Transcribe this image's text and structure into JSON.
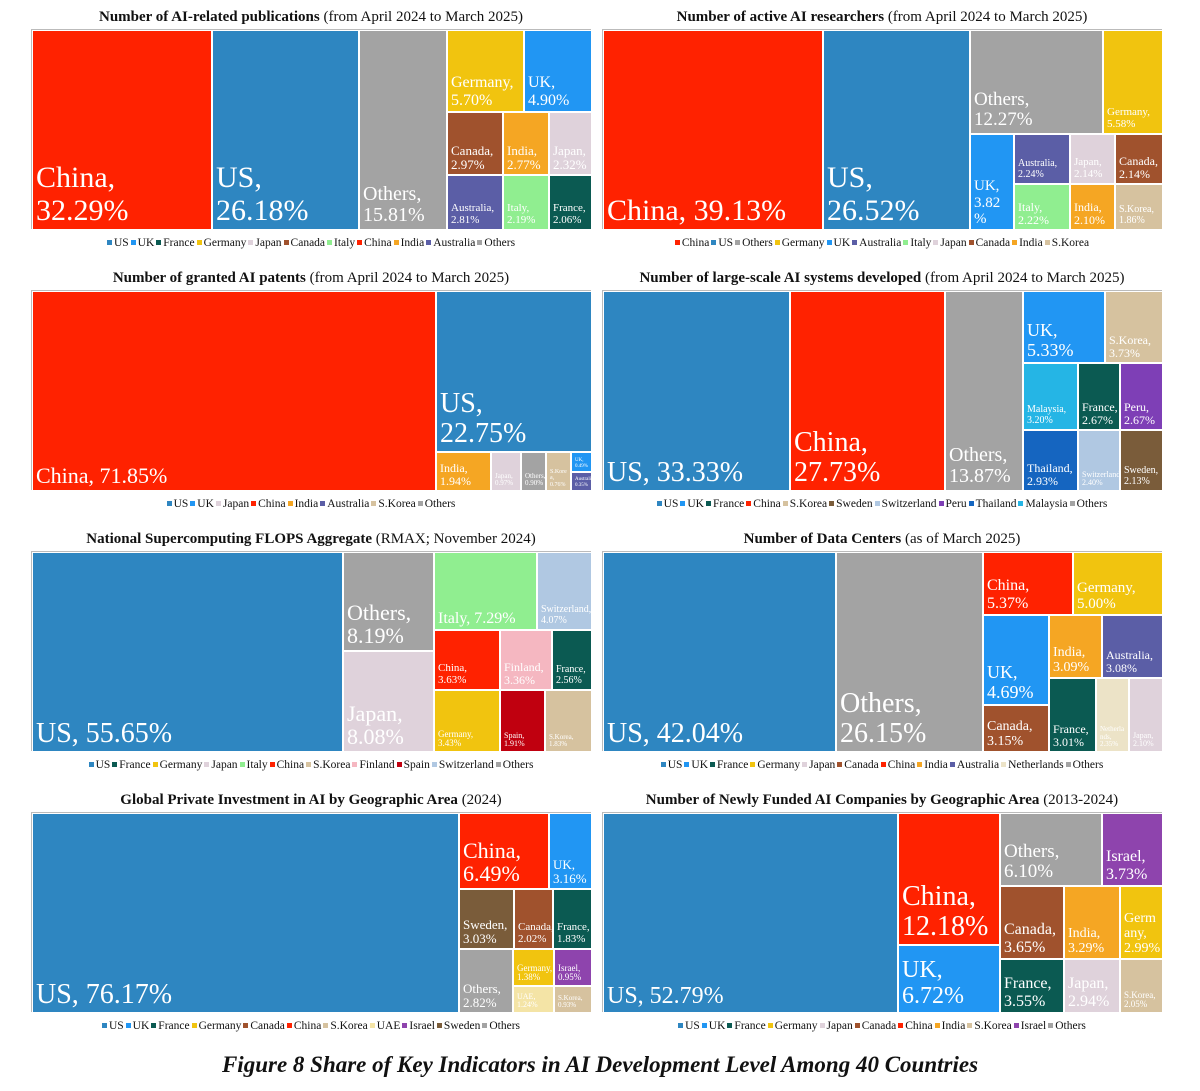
{
  "colors": {
    "US": "#2e86c1",
    "China": "#ff2200",
    "Others": "#a3a3a3",
    "Germany": "#f1c40f",
    "UK": "#2196f3",
    "Canada": "#a0522d",
    "India": "#f5a623",
    "Japan": "#dfd2db",
    "Australia": "#5b5ea6",
    "Italy": "#90ee90",
    "France": "#0b5a52",
    "S.Korea": "#d6c29f",
    "Malaysia": "#25b5e5",
    "Peru": "#7e3fb6",
    "Thailand": "#1565c0",
    "Switzerland": "#b0c8e2",
    "Sweden": "#7a5c3a",
    "Finland": "#f5b7c1",
    "Spain": "#c0000f",
    "Netherlands": "#ece3c7",
    "UAE": "#f4e4a6",
    "Israel": "#8e44ad"
  },
  "caption": "Figure 8 Share of Key Indicators in AI Development Level Among 40 Countries",
  "chart_data": [
    {
      "type": "treemap",
      "title": "Number of AI-related publications",
      "subtitle": "(from April 2024 to March 2025)",
      "legend": [
        "US",
        "UK",
        "France",
        "Germany",
        "Japan",
        "Canada",
        "Italy",
        "China",
        "India",
        "Australia",
        "Others"
      ],
      "items": [
        {
          "name": "China",
          "label": "China,\n32.29%",
          "value": 32.29
        },
        {
          "name": "US",
          "label": "US,\n26.18%",
          "value": 26.18
        },
        {
          "name": "Others",
          "label": "Others,\n15.81%",
          "value": 15.81
        },
        {
          "name": "Germany",
          "label": "Germany,\n5.70%",
          "value": 5.7
        },
        {
          "name": "UK",
          "label": "UK,\n4.90%",
          "value": 4.9
        },
        {
          "name": "Canada",
          "label": "Canada,\n2.97%",
          "value": 2.97
        },
        {
          "name": "India",
          "label": "India,\n2.77%",
          "value": 2.77
        },
        {
          "name": "Japan",
          "label": "Japan,\n2.32%",
          "value": 2.32
        },
        {
          "name": "Australia",
          "label": "Australia,\n2.81%",
          "value": 2.81
        },
        {
          "name": "Italy",
          "label": "Italy,\n2.19%",
          "value": 2.19
        },
        {
          "name": "France",
          "label": "France,\n2.06%",
          "value": 2.06
        }
      ]
    },
    {
      "type": "treemap",
      "title": "Number of active AI researchers",
      "subtitle": "(from April 2024 to March 2025)",
      "legend": [
        "China",
        "US",
        "Others",
        "Germany",
        "UK",
        "Australia",
        "Italy",
        "Japan",
        "Canada",
        "India",
        "S.Korea"
      ],
      "items": [
        {
          "name": "China",
          "label": "China, 39.13%",
          "value": 39.13
        },
        {
          "name": "US",
          "label": "US,\n26.52%",
          "value": 26.52
        },
        {
          "name": "Others",
          "label": "Others,\n12.27%",
          "value": 12.27
        },
        {
          "name": "Germany",
          "label": "Germany,\n5.58%",
          "value": 5.58
        },
        {
          "name": "UK",
          "label": "UK,\n3.82\n%",
          "value": 3.82
        },
        {
          "name": "Australia",
          "label": "Australia,\n2.24%",
          "value": 2.24
        },
        {
          "name": "Japan",
          "label": "Japan,\n2.14%",
          "value": 2.14
        },
        {
          "name": "Canada",
          "label": "Canada,\n2.14%",
          "value": 2.14
        },
        {
          "name": "Italy",
          "label": "Italy,\n2.22%",
          "value": 2.22
        },
        {
          "name": "India",
          "label": "India,\n2.10%",
          "value": 2.1
        },
        {
          "name": "S.Korea",
          "label": "S.Korea,\n1.86%",
          "value": 1.86
        }
      ]
    },
    {
      "type": "treemap",
      "title": "Number of granted AI patents",
      "subtitle": "(from April 2024 to March 2025)",
      "legend": [
        "US",
        "UK",
        "Japan",
        "China",
        "India",
        "Australia",
        "S.Korea",
        "Others"
      ],
      "items": [
        {
          "name": "China",
          "label": "China, 71.85%",
          "value": 71.85
        },
        {
          "name": "US",
          "label": "US,\n22.75%",
          "value": 22.75
        },
        {
          "name": "India",
          "label": "India,\n1.94%",
          "value": 1.94
        },
        {
          "name": "Japan",
          "label": "Japan,\n0.97%",
          "value": 0.97
        },
        {
          "name": "Others",
          "label": "Others,\n0.90%",
          "value": 0.9
        },
        {
          "name": "S.Korea",
          "label": "S.Kore\na,\n0.76%",
          "value": 0.76
        },
        {
          "name": "UK",
          "label": "UK,\n0.49%",
          "value": 0.49
        },
        {
          "name": "Australia",
          "label": "Australia,\n0.35%",
          "value": 0.35
        }
      ]
    },
    {
      "type": "treemap",
      "title": "Number of large-scale AI systems developed",
      "subtitle": "(from April 2024 to March 2025)",
      "legend": [
        "US",
        "UK",
        "France",
        "China",
        "S.Korea",
        "Sweden",
        "Switzerland",
        "Peru",
        "Thailand",
        "Malaysia",
        "Others"
      ],
      "items": [
        {
          "name": "US",
          "label": "US, 33.33%",
          "value": 33.33
        },
        {
          "name": "China",
          "label": "China,\n27.73%",
          "value": 27.73
        },
        {
          "name": "Others",
          "label": "Others,\n13.87%",
          "value": 13.87
        },
        {
          "name": "UK",
          "label": "UK,\n5.33%",
          "value": 5.33
        },
        {
          "name": "S.Korea",
          "label": "S.Korea,\n3.73%",
          "value": 3.73
        },
        {
          "name": "Malaysia",
          "label": "Malaysia,\n3.20%",
          "value": 3.2
        },
        {
          "name": "France",
          "label": "France,\n2.67%",
          "value": 2.67
        },
        {
          "name": "Peru",
          "label": "Peru,\n2.67%",
          "value": 2.67
        },
        {
          "name": "Thailand",
          "label": "Thailand,\n2.93%",
          "value": 2.93
        },
        {
          "name": "Switzerland",
          "label": "Switzerland,\n2.40%",
          "value": 2.4
        },
        {
          "name": "Sweden",
          "label": "Sweden,\n2.13%",
          "value": 2.13
        }
      ]
    },
    {
      "type": "treemap",
      "title": "National Supercomputing FLOPS Aggregate",
      "subtitle": "(RMAX; November 2024)",
      "legend": [
        "US",
        "France",
        "Germany",
        "Japan",
        "Italy",
        "China",
        "S.Korea",
        "Finland",
        "Spain",
        "Switzerland",
        "Others"
      ],
      "items": [
        {
          "name": "US",
          "label": "US, 55.65%",
          "value": 55.65
        },
        {
          "name": "Others",
          "label": "Others,\n8.19%",
          "value": 8.19
        },
        {
          "name": "Japan",
          "label": "Japan,\n8.08%",
          "value": 8.08
        },
        {
          "name": "Italy",
          "label": "Italy, 7.29%",
          "value": 7.29
        },
        {
          "name": "Switzerland",
          "label": "Switzerland,\n4.07%",
          "value": 4.07
        },
        {
          "name": "China",
          "label": "China,\n3.63%",
          "value": 3.63
        },
        {
          "name": "Finland",
          "label": "Finland,\n3.36%",
          "value": 3.36
        },
        {
          "name": "France",
          "label": "France,\n2.56%",
          "value": 2.56
        },
        {
          "name": "Germany",
          "label": "Germany,\n3.43%",
          "value": 3.43
        },
        {
          "name": "Spain",
          "label": "Spain,\n1.91%",
          "value": 1.91
        },
        {
          "name": "S.Korea",
          "label": "S.Korea,\n1.83%",
          "value": 1.83
        }
      ]
    },
    {
      "type": "treemap",
      "title": "Number of Data Centers",
      "subtitle": "(as of March 2025)",
      "legend": [
        "US",
        "UK",
        "France",
        "Germany",
        "Japan",
        "Canada",
        "China",
        "India",
        "Australia",
        "Netherlands",
        "Others"
      ],
      "items": [
        {
          "name": "US",
          "label": "US, 42.04%",
          "value": 42.04
        },
        {
          "name": "Others",
          "label": "Others,\n26.15%",
          "value": 26.15
        },
        {
          "name": "China",
          "label": "China,\n5.37%",
          "value": 5.37
        },
        {
          "name": "Germany",
          "label": "Germany,\n5.00%",
          "value": 5.0
        },
        {
          "name": "UK",
          "label": "UK,\n4.69%",
          "value": 4.69
        },
        {
          "name": "India",
          "label": "India,\n3.09%",
          "value": 3.09
        },
        {
          "name": "Australia",
          "label": "Australia,\n3.08%",
          "value": 3.08
        },
        {
          "name": "Canada",
          "label": "Canada,\n3.15%",
          "value": 3.15
        },
        {
          "name": "France",
          "label": "France,\n3.01%",
          "value": 3.01
        },
        {
          "name": "Netherlands",
          "label": "Netherla\nnds,\n2.35%",
          "value": 2.35
        },
        {
          "name": "Japan",
          "label": "Japan,\n2.10%",
          "value": 2.1
        }
      ]
    },
    {
      "type": "treemap",
      "title": "Global Private Investment in AI by Geographic Area",
      "subtitle": "(2024)",
      "legend": [
        "US",
        "UK",
        "France",
        "Germany",
        "Canada",
        "China",
        "S.Korea",
        "UAE",
        "Israel",
        "Sweden",
        "Others"
      ],
      "items": [
        {
          "name": "US",
          "label": "US, 76.17%",
          "value": 76.17
        },
        {
          "name": "China",
          "label": "China,\n6.49%",
          "value": 6.49
        },
        {
          "name": "UK",
          "label": "UK,\n3.16%",
          "value": 3.16
        },
        {
          "name": "Sweden",
          "label": "Sweden,\n3.03%",
          "value": 3.03
        },
        {
          "name": "Canada",
          "label": "Canada,\n2.02%",
          "value": 2.02
        },
        {
          "name": "France",
          "label": "France,\n1.83%",
          "value": 1.83
        },
        {
          "name": "Others",
          "label": "Others,\n2.82%",
          "value": 2.82
        },
        {
          "name": "Germany",
          "label": "Germany,\n1.38%",
          "value": 1.38
        },
        {
          "name": "Israel",
          "label": "Israel,\n0.95%",
          "value": 0.95
        },
        {
          "name": "UAE",
          "label": "UAE,\n1.24%",
          "value": 1.24
        },
        {
          "name": "S.Korea",
          "label": "S.Korea,\n0.93%",
          "value": 0.93
        }
      ]
    },
    {
      "type": "treemap",
      "title": "Number of Newly Funded AI Companies by Geographic Area",
      "subtitle": "(2013-2024)",
      "legend": [
        "US",
        "UK",
        "France",
        "Germany",
        "Japan",
        "Canada",
        "China",
        "India",
        "S.Korea",
        "Israel",
        "Others"
      ],
      "items": [
        {
          "name": "US",
          "label": "US, 52.79%",
          "value": 52.79
        },
        {
          "name": "China",
          "label": "China,\n12.18%",
          "value": 12.18
        },
        {
          "name": "UK",
          "label": "UK,\n6.72%",
          "value": 6.72
        },
        {
          "name": "Others",
          "label": "Others,\n6.10%",
          "value": 6.1
        },
        {
          "name": "Israel",
          "label": "Israel,\n3.73%",
          "value": 3.73
        },
        {
          "name": "Canada",
          "label": "Canada,\n3.65%",
          "value": 3.65
        },
        {
          "name": "India",
          "label": "India,\n3.29%",
          "value": 3.29
        },
        {
          "name": "Germany",
          "label": "Germ\nany,\n2.99%",
          "value": 2.99
        },
        {
          "name": "France",
          "label": "France,\n3.55%",
          "value": 3.55
        },
        {
          "name": "Japan",
          "label": "Japan,\n2.94%",
          "value": 2.94
        },
        {
          "name": "S.Korea",
          "label": "S.Korea,\n2.05%",
          "value": 2.05
        }
      ]
    }
  ]
}
